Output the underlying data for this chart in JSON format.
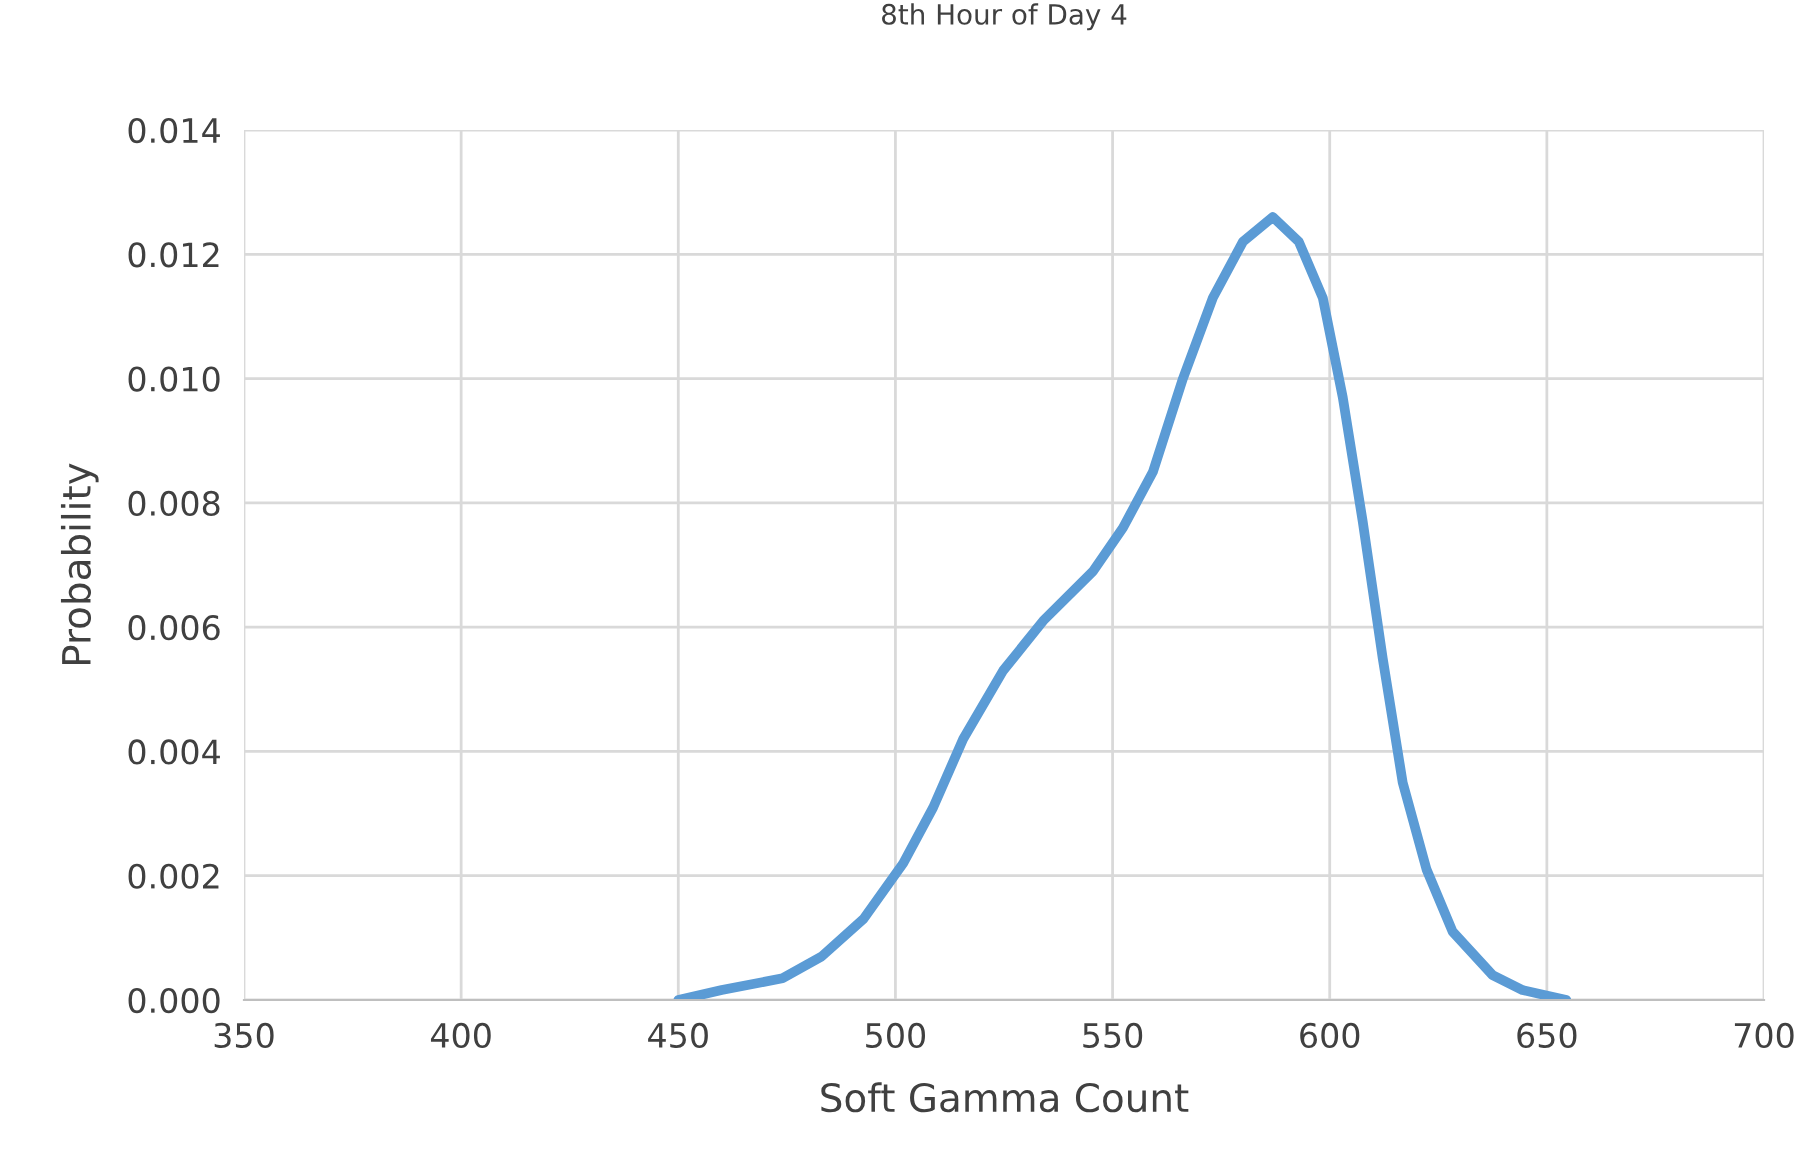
{
  "chart_data": {
    "type": "line",
    "title": "8th Hour of Day 4",
    "xlabel": "Soft Gamma Count",
    "ylabel": "Probability",
    "series": [
      {
        "color": "#5b9bd5",
        "x": [
          450,
          460,
          474,
          483,
          492.6,
          501.8,
          508.7,
          515.6,
          524.8,
          534,
          545.5,
          552.4,
          559.3,
          566.2,
          573.1,
          580,
          586.9,
          592.9,
          598.4,
          603,
          607.6,
          612.2,
          616.8,
          622.3,
          628.3,
          637.5,
          644.4,
          654.5
        ],
        "values": [
          0,
          0.00016,
          0.00035,
          0.0007,
          0.0013,
          0.0022,
          0.0031,
          0.0042,
          0.0053,
          0.0061,
          0.0069,
          0.0076,
          0.0085,
          0.01,
          0.0113,
          0.0122,
          0.0126,
          0.0122,
          0.0113,
          0.0097,
          0.0077,
          0.0055,
          0.0035,
          0.0021,
          0.0011,
          0.0004,
          0.00016,
          0
        ]
      }
    ],
    "xlim": [
      350,
      700
    ],
    "xticks": [
      350,
      400,
      450,
      500,
      550,
      600,
      650,
      700
    ],
    "ylim": [
      0,
      0.014
    ],
    "yticks": [
      {
        "value": 0,
        "label": "0.000"
      },
      {
        "value": 0.002,
        "label": "0.002"
      },
      {
        "value": 0.004,
        "label": "0.004"
      },
      {
        "value": 0.006,
        "label": "0.006"
      },
      {
        "value": 0.008,
        "label": "0.008"
      },
      {
        "value": 0.01,
        "label": "0.010"
      },
      {
        "value": 0.012,
        "label": "0.012"
      },
      {
        "value": 0.014,
        "label": "0.014"
      }
    ],
    "grid": true,
    "marker": "none",
    "line_style": "solid"
  }
}
